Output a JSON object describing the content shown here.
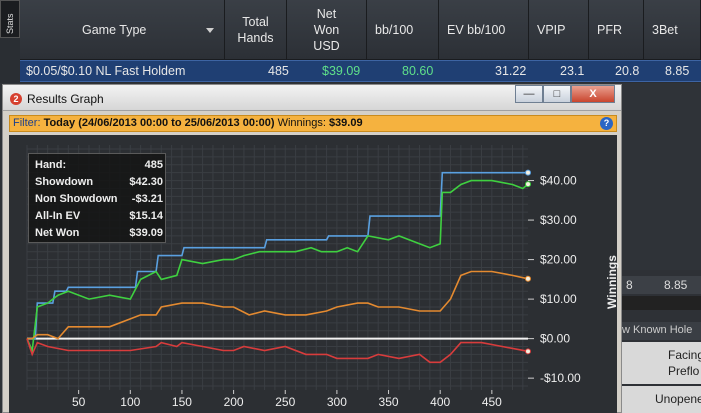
{
  "stats_tab_label": "Stats",
  "table": {
    "headers": [
      {
        "key": "game_type",
        "label": "Game Type"
      },
      {
        "key": "total_hands",
        "label": "Total Hands"
      },
      {
        "key": "net_won_usd",
        "label": "Net Won USD"
      },
      {
        "key": "bb100",
        "label": "bb/100"
      },
      {
        "key": "ev_bb100",
        "label": "EV bb/100"
      },
      {
        "key": "vpip",
        "label": "VPIP"
      },
      {
        "key": "pfr",
        "label": "PFR"
      },
      {
        "key": "threebet",
        "label": "3Bet"
      }
    ],
    "row": {
      "game_type": "$0.05/$0.10 NL Fast Holdem",
      "total_hands": "485",
      "net_won_usd": "$39.09",
      "bb100": "80.60",
      "ev_bb100": "31.22",
      "vpip": "23.1",
      "pfr": "20.8",
      "threebet": "8.85"
    },
    "colors": {
      "positive": "#5fe08a",
      "row_bg": "#1f3f73"
    }
  },
  "background_panel": {
    "row1_left": "8",
    "row1_right": "8.85",
    "column_label": "w Known Hole",
    "cell_facing": "Facing",
    "cell_preflop": "Preflo",
    "cell_unopened": "Unopene"
  },
  "window": {
    "icon_badge": "2",
    "title": "Results Graph",
    "buttons": {
      "minimize": "—",
      "maximize": "□",
      "close": "X"
    },
    "filter": {
      "prefix": "Filter:",
      "range": "Today (24/06/2013 00:00 to 25/06/2013 00:00)",
      "winnings_label": "Winnings:",
      "winnings_value": "$39.09"
    },
    "help_label": "?"
  },
  "info": [
    {
      "key": "Hand:",
      "value": "485"
    },
    {
      "key": "Showdown",
      "value": "$42.30"
    },
    {
      "key": "Non Showdown",
      "value": "-$3.21"
    },
    {
      "key": "All-In EV",
      "value": "$15.14"
    },
    {
      "key": "Net Won",
      "value": "$39.09"
    }
  ],
  "chart_data": {
    "type": "line",
    "ylabel": "Winnings",
    "xlim": [
      0,
      485
    ],
    "ylim": [
      -13,
      49
    ],
    "x_ticks": [
      50,
      100,
      150,
      200,
      250,
      300,
      350,
      400,
      450
    ],
    "y_ticks": [
      {
        "value": 40,
        "label": "$40.00"
      },
      {
        "value": 30,
        "label": "$30.00"
      },
      {
        "value": 20,
        "label": "$20.00"
      },
      {
        "value": 10,
        "label": "$10.00"
      },
      {
        "value": 0,
        "label": "$0.00"
      },
      {
        "value": -10,
        "label": "-$10.00"
      }
    ],
    "grid": true,
    "series": [
      {
        "color": "#5aa0e0",
        "points": [
          [
            0,
            0
          ],
          [
            8,
            0
          ],
          [
            10,
            9
          ],
          [
            25,
            9
          ],
          [
            27,
            12
          ],
          [
            38,
            12
          ],
          [
            40,
            13
          ],
          [
            60,
            13
          ],
          [
            62,
            13
          ],
          [
            105,
            13
          ],
          [
            107,
            17
          ],
          [
            125,
            17
          ],
          [
            127,
            21
          ],
          [
            150,
            21
          ],
          [
            152,
            23
          ],
          [
            230,
            23
          ],
          [
            232,
            25
          ],
          [
            290,
            25
          ],
          [
            292,
            26
          ],
          [
            330,
            26
          ],
          [
            332,
            31
          ],
          [
            400,
            31
          ],
          [
            402,
            42
          ],
          [
            485,
            42
          ]
        ]
      },
      {
        "color": "#3fd040",
        "points": [
          [
            0,
            0
          ],
          [
            5,
            -3
          ],
          [
            10,
            8
          ],
          [
            20,
            9
          ],
          [
            25,
            10
          ],
          [
            30,
            11
          ],
          [
            40,
            12
          ],
          [
            60,
            10
          ],
          [
            80,
            11
          ],
          [
            100,
            10
          ],
          [
            104,
            12
          ],
          [
            110,
            15
          ],
          [
            125,
            17
          ],
          [
            130,
            15
          ],
          [
            145,
            16
          ],
          [
            150,
            20
          ],
          [
            170,
            19
          ],
          [
            190,
            20
          ],
          [
            200,
            20
          ],
          [
            210,
            21
          ],
          [
            225,
            22
          ],
          [
            240,
            22
          ],
          [
            260,
            22
          ],
          [
            275,
            23
          ],
          [
            285,
            22
          ],
          [
            290,
            22
          ],
          [
            300,
            22
          ],
          [
            310,
            23
          ],
          [
            320,
            22
          ],
          [
            330,
            26
          ],
          [
            350,
            25
          ],
          [
            360,
            26
          ],
          [
            380,
            24
          ],
          [
            390,
            23
          ],
          [
            400,
            24
          ],
          [
            402,
            37
          ],
          [
            410,
            37
          ],
          [
            420,
            39
          ],
          [
            430,
            40
          ],
          [
            450,
            40
          ],
          [
            470,
            39
          ],
          [
            480,
            38
          ],
          [
            485,
            39.09
          ]
        ]
      },
      {
        "color": "#e48a30",
        "points": [
          [
            0,
            0
          ],
          [
            5,
            0
          ],
          [
            10,
            1
          ],
          [
            20,
            1
          ],
          [
            30,
            0
          ],
          [
            40,
            3
          ],
          [
            60,
            3
          ],
          [
            80,
            3
          ],
          [
            100,
            5
          ],
          [
            110,
            6
          ],
          [
            125,
            6
          ],
          [
            130,
            8
          ],
          [
            150,
            9
          ],
          [
            170,
            9
          ],
          [
            190,
            8
          ],
          [
            200,
            8
          ],
          [
            215,
            6
          ],
          [
            230,
            7
          ],
          [
            250,
            6
          ],
          [
            270,
            6
          ],
          [
            290,
            7
          ],
          [
            300,
            8
          ],
          [
            320,
            9
          ],
          [
            330,
            9
          ],
          [
            340,
            8
          ],
          [
            360,
            8
          ],
          [
            380,
            7
          ],
          [
            400,
            7
          ],
          [
            410,
            10
          ],
          [
            420,
            16
          ],
          [
            430,
            17
          ],
          [
            450,
            17
          ],
          [
            470,
            16
          ],
          [
            485,
            15.14
          ]
        ]
      },
      {
        "color": "#d83c3c",
        "points": [
          [
            0,
            0
          ],
          [
            5,
            -4
          ],
          [
            10,
            -1
          ],
          [
            20,
            -2
          ],
          [
            40,
            -3
          ],
          [
            60,
            -3
          ],
          [
            80,
            -3
          ],
          [
            100,
            -3
          ],
          [
            125,
            -2
          ],
          [
            130,
            -1
          ],
          [
            145,
            -2
          ],
          [
            150,
            -1
          ],
          [
            170,
            -2
          ],
          [
            190,
            -3
          ],
          [
            200,
            -3
          ],
          [
            210,
            -2
          ],
          [
            230,
            -3
          ],
          [
            250,
            -2
          ],
          [
            270,
            -4
          ],
          [
            290,
            -4
          ],
          [
            300,
            -5
          ],
          [
            320,
            -5
          ],
          [
            330,
            -5
          ],
          [
            340,
            -4
          ],
          [
            360,
            -5
          ],
          [
            380,
            -4
          ],
          [
            390,
            -6
          ],
          [
            400,
            -6
          ],
          [
            410,
            -4
          ],
          [
            420,
            -1
          ],
          [
            440,
            -1
          ],
          [
            460,
            -2
          ],
          [
            485,
            -3.21
          ]
        ]
      }
    ]
  }
}
